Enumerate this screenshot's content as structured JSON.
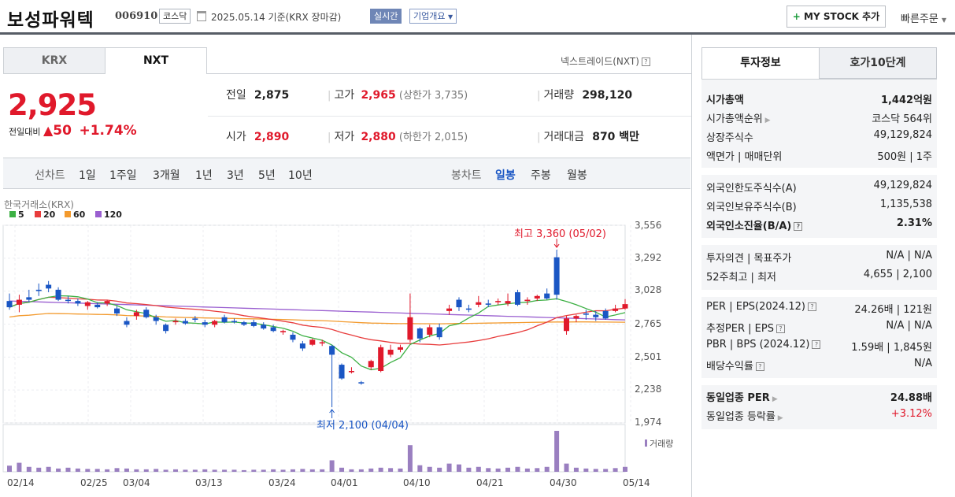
{
  "header": {
    "title": "보성파워텍",
    "code": "006910",
    "market_badge": "코스닥",
    "date": "2025.05.14",
    "basis": "기준(KRX 장마감)",
    "realtime": "실시간",
    "company_overview": "기업개요",
    "mystock_button": "MY STOCK 추가",
    "quick_order": "빠른주문"
  },
  "tabs": {
    "krx": "KRX",
    "nxt": "NXT",
    "nextrade": "넥스트레이드(NXT)"
  },
  "quote": {
    "price": "2,925",
    "change_label": "전일대비",
    "change": "50",
    "change_pct": "+1.74%",
    "prev_label": "전일",
    "prev": "2,875",
    "high_label": "고가",
    "high": "2,965",
    "upper_limit_label": "(상한가",
    "upper_limit": "3,735)",
    "volume_label": "거래량",
    "volume": "298,120",
    "open_label": "시가",
    "open": "2,890",
    "low_label": "저가",
    "low": "2,880",
    "lower_limit_label": "(하한가",
    "lower_limit": "2,015)",
    "amount_label": "거래대금",
    "amount": "870 백만"
  },
  "period_bar": {
    "line_chart": "선차트",
    "periods": [
      "1일",
      "1주일",
      "3개월",
      "1년",
      "3년",
      "5년",
      "10년"
    ],
    "candle_chart": "봉차트",
    "candles": [
      "일봉",
      "주봉",
      "월봉"
    ],
    "active_candle": "일봉"
  },
  "chart_source": "한국거래소(KRX)",
  "ma_legend": [
    {
      "name": "5",
      "color": "#3cb043"
    },
    {
      "name": "20",
      "color": "#e83c3c"
    },
    {
      "name": "60",
      "color": "#f39a2d"
    },
    {
      "name": "120",
      "color": "#9a5fd0"
    }
  ],
  "chart_data": {
    "type": "candlestick",
    "y_ticks": [
      "3,556",
      "3,292",
      "3,028",
      "2,765",
      "2,501",
      "2,238",
      "1,974"
    ],
    "ylim": [
      1974,
      3556
    ],
    "x_ticks": [
      "02/14",
      "02/25",
      "03/04",
      "03/13",
      "03/24",
      "04/01",
      "04/10",
      "04/21",
      "04/30",
      "05/14"
    ],
    "high_annotation": "최고 3,360 (05/02)",
    "low_annotation": "최저 2,100 (04/04)",
    "volume_label": "거래량",
    "up_color": "#e0192b",
    "down_color": "#1a56c4",
    "candles": [
      {
        "o": 2950,
        "h": 3010,
        "l": 2880,
        "c": 2900
      },
      {
        "o": 2920,
        "h": 3000,
        "l": 2860,
        "c": 2960
      },
      {
        "o": 2980,
        "h": 3040,
        "l": 2940,
        "c": 2960
      },
      {
        "o": 3040,
        "h": 3090,
        "l": 2990,
        "c": 3030
      },
      {
        "o": 3080,
        "h": 3110,
        "l": 3020,
        "c": 3050
      },
      {
        "o": 3040,
        "h": 3060,
        "l": 2950,
        "c": 2960
      },
      {
        "o": 2960,
        "h": 2990,
        "l": 2930,
        "c": 2950
      },
      {
        "o": 2950,
        "h": 2970,
        "l": 2910,
        "c": 2930
      },
      {
        "o": 2910,
        "h": 2950,
        "l": 2880,
        "c": 2940
      },
      {
        "o": 2920,
        "h": 2940,
        "l": 2890,
        "c": 2900
      },
      {
        "o": 2930,
        "h": 2960,
        "l": 2910,
        "c": 2950
      },
      {
        "o": 2890,
        "h": 2910,
        "l": 2830,
        "c": 2850
      },
      {
        "o": 2790,
        "h": 2820,
        "l": 2740,
        "c": 2760
      },
      {
        "o": 2830,
        "h": 2880,
        "l": 2800,
        "c": 2860
      },
      {
        "o": 2880,
        "h": 2900,
        "l": 2810,
        "c": 2820
      },
      {
        "o": 2820,
        "h": 2840,
        "l": 2760,
        "c": 2790
      },
      {
        "o": 2760,
        "h": 2770,
        "l": 2690,
        "c": 2710
      },
      {
        "o": 2780,
        "h": 2810,
        "l": 2760,
        "c": 2790
      },
      {
        "o": 2790,
        "h": 2810,
        "l": 2760,
        "c": 2770
      },
      {
        "o": 2810,
        "h": 2830,
        "l": 2780,
        "c": 2800
      },
      {
        "o": 2780,
        "h": 2800,
        "l": 2740,
        "c": 2760
      },
      {
        "o": 2760,
        "h": 2800,
        "l": 2740,
        "c": 2790
      },
      {
        "o": 2820,
        "h": 2840,
        "l": 2770,
        "c": 2780
      },
      {
        "o": 2790,
        "h": 2810,
        "l": 2770,
        "c": 2780
      },
      {
        "o": 2780,
        "h": 2790,
        "l": 2750,
        "c": 2760
      },
      {
        "o": 2780,
        "h": 2800,
        "l": 2740,
        "c": 2750
      },
      {
        "o": 2760,
        "h": 2780,
        "l": 2720,
        "c": 2730
      },
      {
        "o": 2740,
        "h": 2760,
        "l": 2700,
        "c": 2710
      },
      {
        "o": 2700,
        "h": 2720,
        "l": 2680,
        "c": 2710
      },
      {
        "o": 2680,
        "h": 2700,
        "l": 2620,
        "c": 2640
      },
      {
        "o": 2610,
        "h": 2630,
        "l": 2550,
        "c": 2570
      },
      {
        "o": 2600,
        "h": 2650,
        "l": 2590,
        "c": 2640
      },
      {
        "o": 2610,
        "h": 2640,
        "l": 2590,
        "c": 2620
      },
      {
        "o": 2590,
        "h": 2600,
        "l": 2100,
        "c": 2520
      },
      {
        "o": 2440,
        "h": 2450,
        "l": 2320,
        "c": 2330
      },
      {
        "o": 2380,
        "h": 2420,
        "l": 2370,
        "c": 2390
      },
      {
        "o": 2300,
        "h": 2310,
        "l": 2280,
        "c": 2290
      },
      {
        "o": 2420,
        "h": 2480,
        "l": 2400,
        "c": 2470
      },
      {
        "o": 2390,
        "h": 2600,
        "l": 2380,
        "c": 2580
      },
      {
        "o": 2520,
        "h": 2600,
        "l": 2500,
        "c": 2560
      },
      {
        "o": 2560,
        "h": 2600,
        "l": 2540,
        "c": 2580
      },
      {
        "o": 2640,
        "h": 3010,
        "l": 2620,
        "c": 2820
      },
      {
        "o": 2730,
        "h": 2740,
        "l": 2620,
        "c": 2650
      },
      {
        "o": 2680,
        "h": 2760,
        "l": 2660,
        "c": 2740
      },
      {
        "o": 2740,
        "h": 2770,
        "l": 2640,
        "c": 2660
      },
      {
        "o": 2870,
        "h": 2920,
        "l": 2840,
        "c": 2890
      },
      {
        "o": 2960,
        "h": 2980,
        "l": 2870,
        "c": 2900
      },
      {
        "o": 2890,
        "h": 2920,
        "l": 2860,
        "c": 2880
      },
      {
        "o": 2920,
        "h": 2990,
        "l": 2900,
        "c": 2940
      },
      {
        "o": 2930,
        "h": 2960,
        "l": 2900,
        "c": 2920
      },
      {
        "o": 2940,
        "h": 2970,
        "l": 2920,
        "c": 2950
      },
      {
        "o": 2930,
        "h": 3010,
        "l": 2910,
        "c": 2950
      },
      {
        "o": 3020,
        "h": 3040,
        "l": 2910,
        "c": 2920
      },
      {
        "o": 2950,
        "h": 2980,
        "l": 2920,
        "c": 2960
      },
      {
        "o": 2970,
        "h": 3000,
        "l": 2950,
        "c": 2990
      },
      {
        "o": 3010,
        "h": 3050,
        "l": 2960,
        "c": 2970
      },
      {
        "o": 3300,
        "h": 3360,
        "l": 2960,
        "c": 3000
      },
      {
        "o": 2710,
        "h": 2830,
        "l": 2680,
        "c": 2810
      },
      {
        "o": 2810,
        "h": 2840,
        "l": 2780,
        "c": 2830
      },
      {
        "o": 2850,
        "h": 2880,
        "l": 2800,
        "c": 2840
      },
      {
        "o": 2840,
        "h": 2870,
        "l": 2790,
        "c": 2820
      },
      {
        "o": 2870,
        "h": 2890,
        "l": 2800,
        "c": 2810
      },
      {
        "o": 2870,
        "h": 2920,
        "l": 2860,
        "c": 2890
      },
      {
        "o": 2890,
        "h": 2965,
        "l": 2880,
        "c": 2925
      }
    ],
    "volumes": [
      0.15,
      0.22,
      0.12,
      0.1,
      0.12,
      0.08,
      0.1,
      0.08,
      0.07,
      0.07,
      0.06,
      0.09,
      0.08,
      0.06,
      0.06,
      0.07,
      0.05,
      0.06,
      0.05,
      0.05,
      0.06,
      0.05,
      0.05,
      0.05,
      0.04,
      0.05,
      0.05,
      0.06,
      0.05,
      0.06,
      0.07,
      0.06,
      0.06,
      0.28,
      0.1,
      0.06,
      0.06,
      0.08,
      0.1,
      0.09,
      0.08,
      0.65,
      0.16,
      0.12,
      0.1,
      0.2,
      0.18,
      0.1,
      0.12,
      0.09,
      0.08,
      0.1,
      0.12,
      0.08,
      0.09,
      0.12,
      1.0,
      0.2,
      0.1,
      0.08,
      0.07,
      0.07,
      0.09,
      0.12
    ]
  },
  "right_panel": {
    "tab_invest": "투자정보",
    "tab_orderbook": "호가10단계",
    "sec1": [
      {
        "k": "시가총액",
        "v": "1,442억원",
        "bold": true
      },
      {
        "k": "시가총액순위",
        "v": "코스닥 564위",
        "arrow": true
      },
      {
        "k": "상장주식수",
        "v": "49,129,824"
      },
      {
        "k": "액면가 | 매매단위",
        "v": "500원 | 1주"
      }
    ],
    "sec2": [
      {
        "k": "외국인한도주식수(A)",
        "v": "49,129,824"
      },
      {
        "k": "외국인보유주식수(B)",
        "v": "1,135,538"
      },
      {
        "k": "외국인소진율(B/A)",
        "v": "2.31%",
        "bold": true,
        "q": true
      }
    ],
    "sec3": [
      {
        "k": "투자의견 | 목표주가",
        "v": "N/A | N/A"
      },
      {
        "k": "52주최고 | 최저",
        "v": "4,655 | 2,100"
      }
    ],
    "sec4": [
      {
        "k": "PER | EPS(2024.12)",
        "v": "24.26배 | 121원",
        "q": true
      },
      {
        "k": "추정PER | EPS",
        "v": "N/A | N/A",
        "q": true
      },
      {
        "k": "PBR | BPS (2024.12)",
        "v": "1.59배 | 1,845원",
        "q": true
      },
      {
        "k": "배당수익률",
        "v": "N/A",
        "q": true
      }
    ],
    "sec5": [
      {
        "k": "동일업종 PER",
        "v": "24.88배",
        "bold": true,
        "arrow": true
      },
      {
        "k": "동일업종 등락률",
        "v": "+3.12%",
        "red": true,
        "arrow": true
      }
    ]
  }
}
